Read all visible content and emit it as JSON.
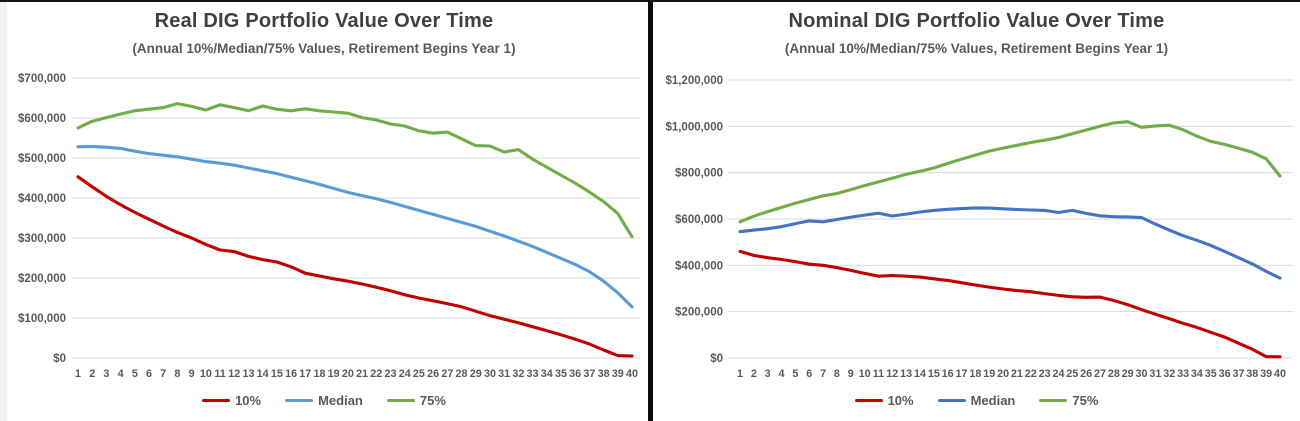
{
  "page": {
    "background": "#ffffff",
    "divider_color": "#0b0b0b",
    "gridline_color": "#d9d9d9",
    "title_color": "#404040",
    "axis_label_color": "#595959"
  },
  "chart_data": [
    {
      "type": "line",
      "title": "Real DIG Portfolio Value Over Time",
      "subtitle": "(Annual 10%/Median/75% Values, Retirement Begins Year 1)",
      "xlabel": "",
      "ylabel": "",
      "ylim": [
        0,
        700000
      ],
      "ytick_step": 100000,
      "y_tick_labels": [
        "$700,000",
        "$600,000",
        "$500,000",
        "$400,000",
        "$300,000",
        "$200,000",
        "$100,000",
        "$0"
      ],
      "grid": true,
      "legend_position": "bottom",
      "x": [
        1,
        2,
        3,
        4,
        5,
        6,
        7,
        8,
        9,
        10,
        11,
        12,
        13,
        14,
        15,
        16,
        17,
        18,
        19,
        20,
        21,
        22,
        23,
        24,
        25,
        26,
        27,
        28,
        29,
        30,
        31,
        32,
        33,
        34,
        35,
        36,
        37,
        38,
        39,
        40
      ],
      "series": [
        {
          "name": "10%",
          "color": "#c00000",
          "values": [
            453000,
            428000,
            404000,
            383000,
            364000,
            347000,
            330000,
            314000,
            300000,
            284000,
            270000,
            266000,
            254000,
            246000,
            240000,
            228000,
            212000,
            205000,
            198000,
            192000,
            185000,
            177000,
            168000,
            158000,
            150000,
            143000,
            136000,
            128000,
            117000,
            106000,
            97000,
            88000,
            78000,
            68000,
            58000,
            47000,
            35000,
            20000,
            6000,
            5000
          ]
        },
        {
          "name": "Median",
          "color": "#5b9bd5",
          "values": [
            528000,
            529000,
            527000,
            524000,
            517000,
            511000,
            507000,
            503000,
            497000,
            491000,
            487000,
            482000,
            475000,
            468000,
            461000,
            452000,
            443000,
            434000,
            424000,
            414000,
            406000,
            398000,
            389000,
            379000,
            369000,
            359000,
            349000,
            339000,
            329000,
            317000,
            305000,
            292000,
            279000,
            264000,
            249000,
            234000,
            216000,
            192000,
            163000,
            128000
          ]
        },
        {
          "name": "75%",
          "color": "#70ad47",
          "values": [
            575000,
            592000,
            601000,
            610000,
            618000,
            622000,
            626000,
            636000,
            629000,
            620000,
            633000,
            626000,
            618000,
            630000,
            622000,
            618000,
            623000,
            618000,
            615000,
            612000,
            601000,
            595000,
            585000,
            580000,
            568000,
            562000,
            565000,
            548000,
            531000,
            530000,
            515000,
            521000,
            497000,
            477000,
            457000,
            437000,
            415000,
            391000,
            361000,
            303000
          ]
        }
      ]
    },
    {
      "type": "line",
      "title": "Nominal DIG Portfolio Value Over Time",
      "subtitle": "(Annual 10%/Median/75% Values, Retirement Begins Year 1)",
      "xlabel": "",
      "ylabel": "",
      "ylim": [
        0,
        1200000
      ],
      "ytick_step": 200000,
      "y_tick_labels": [
        "$1,200,000",
        "$1,000,000",
        "$800,000",
        "$600,000",
        "$400,000",
        "$200,000",
        "$0"
      ],
      "grid": true,
      "legend_position": "bottom",
      "x": [
        1,
        2,
        3,
        4,
        5,
        6,
        7,
        8,
        9,
        10,
        11,
        12,
        13,
        14,
        15,
        16,
        17,
        18,
        19,
        20,
        21,
        22,
        23,
        24,
        25,
        26,
        27,
        28,
        29,
        30,
        31,
        32,
        33,
        34,
        35,
        36,
        37,
        38,
        39,
        40
      ],
      "series": [
        {
          "name": "10%",
          "color": "#c00000",
          "values": [
            460000,
            443000,
            433000,
            425000,
            416000,
            405000,
            400000,
            390000,
            378000,
            365000,
            353000,
            356000,
            353000,
            349000,
            342000,
            335000,
            325000,
            315000,
            306000,
            298000,
            291000,
            286000,
            278000,
            270000,
            264000,
            262000,
            263000,
            248000,
            230000,
            209000,
            189000,
            170000,
            150000,
            132000,
            111000,
            90000,
            64000,
            38000,
            6000,
            5000
          ]
        },
        {
          "name": "Median",
          "color": "#4472c4",
          "values": [
            545000,
            552000,
            558000,
            567000,
            580000,
            592000,
            588000,
            598000,
            608000,
            617000,
            625000,
            613000,
            621000,
            630000,
            637000,
            642000,
            645000,
            648000,
            647000,
            644000,
            641000,
            639000,
            637000,
            628000,
            637000,
            624000,
            614000,
            610000,
            609000,
            606000,
            578000,
            552000,
            528000,
            508000,
            486000,
            460000,
            433000,
            406000,
            374000,
            345000
          ]
        },
        {
          "name": "75%",
          "color": "#70ad47",
          "values": [
            588000,
            612000,
            632000,
            650000,
            668000,
            684000,
            700000,
            710000,
            727000,
            744000,
            760000,
            776000,
            793000,
            806000,
            820000,
            840000,
            858000,
            876000,
            893000,
            906000,
            918000,
            930000,
            940000,
            952000,
            968000,
            984000,
            1000000,
            1015000,
            1020000,
            996000,
            1002000,
            1005000,
            985000,
            958000,
            935000,
            922000,
            905000,
            888000,
            860000,
            785000
          ]
        }
      ]
    }
  ]
}
